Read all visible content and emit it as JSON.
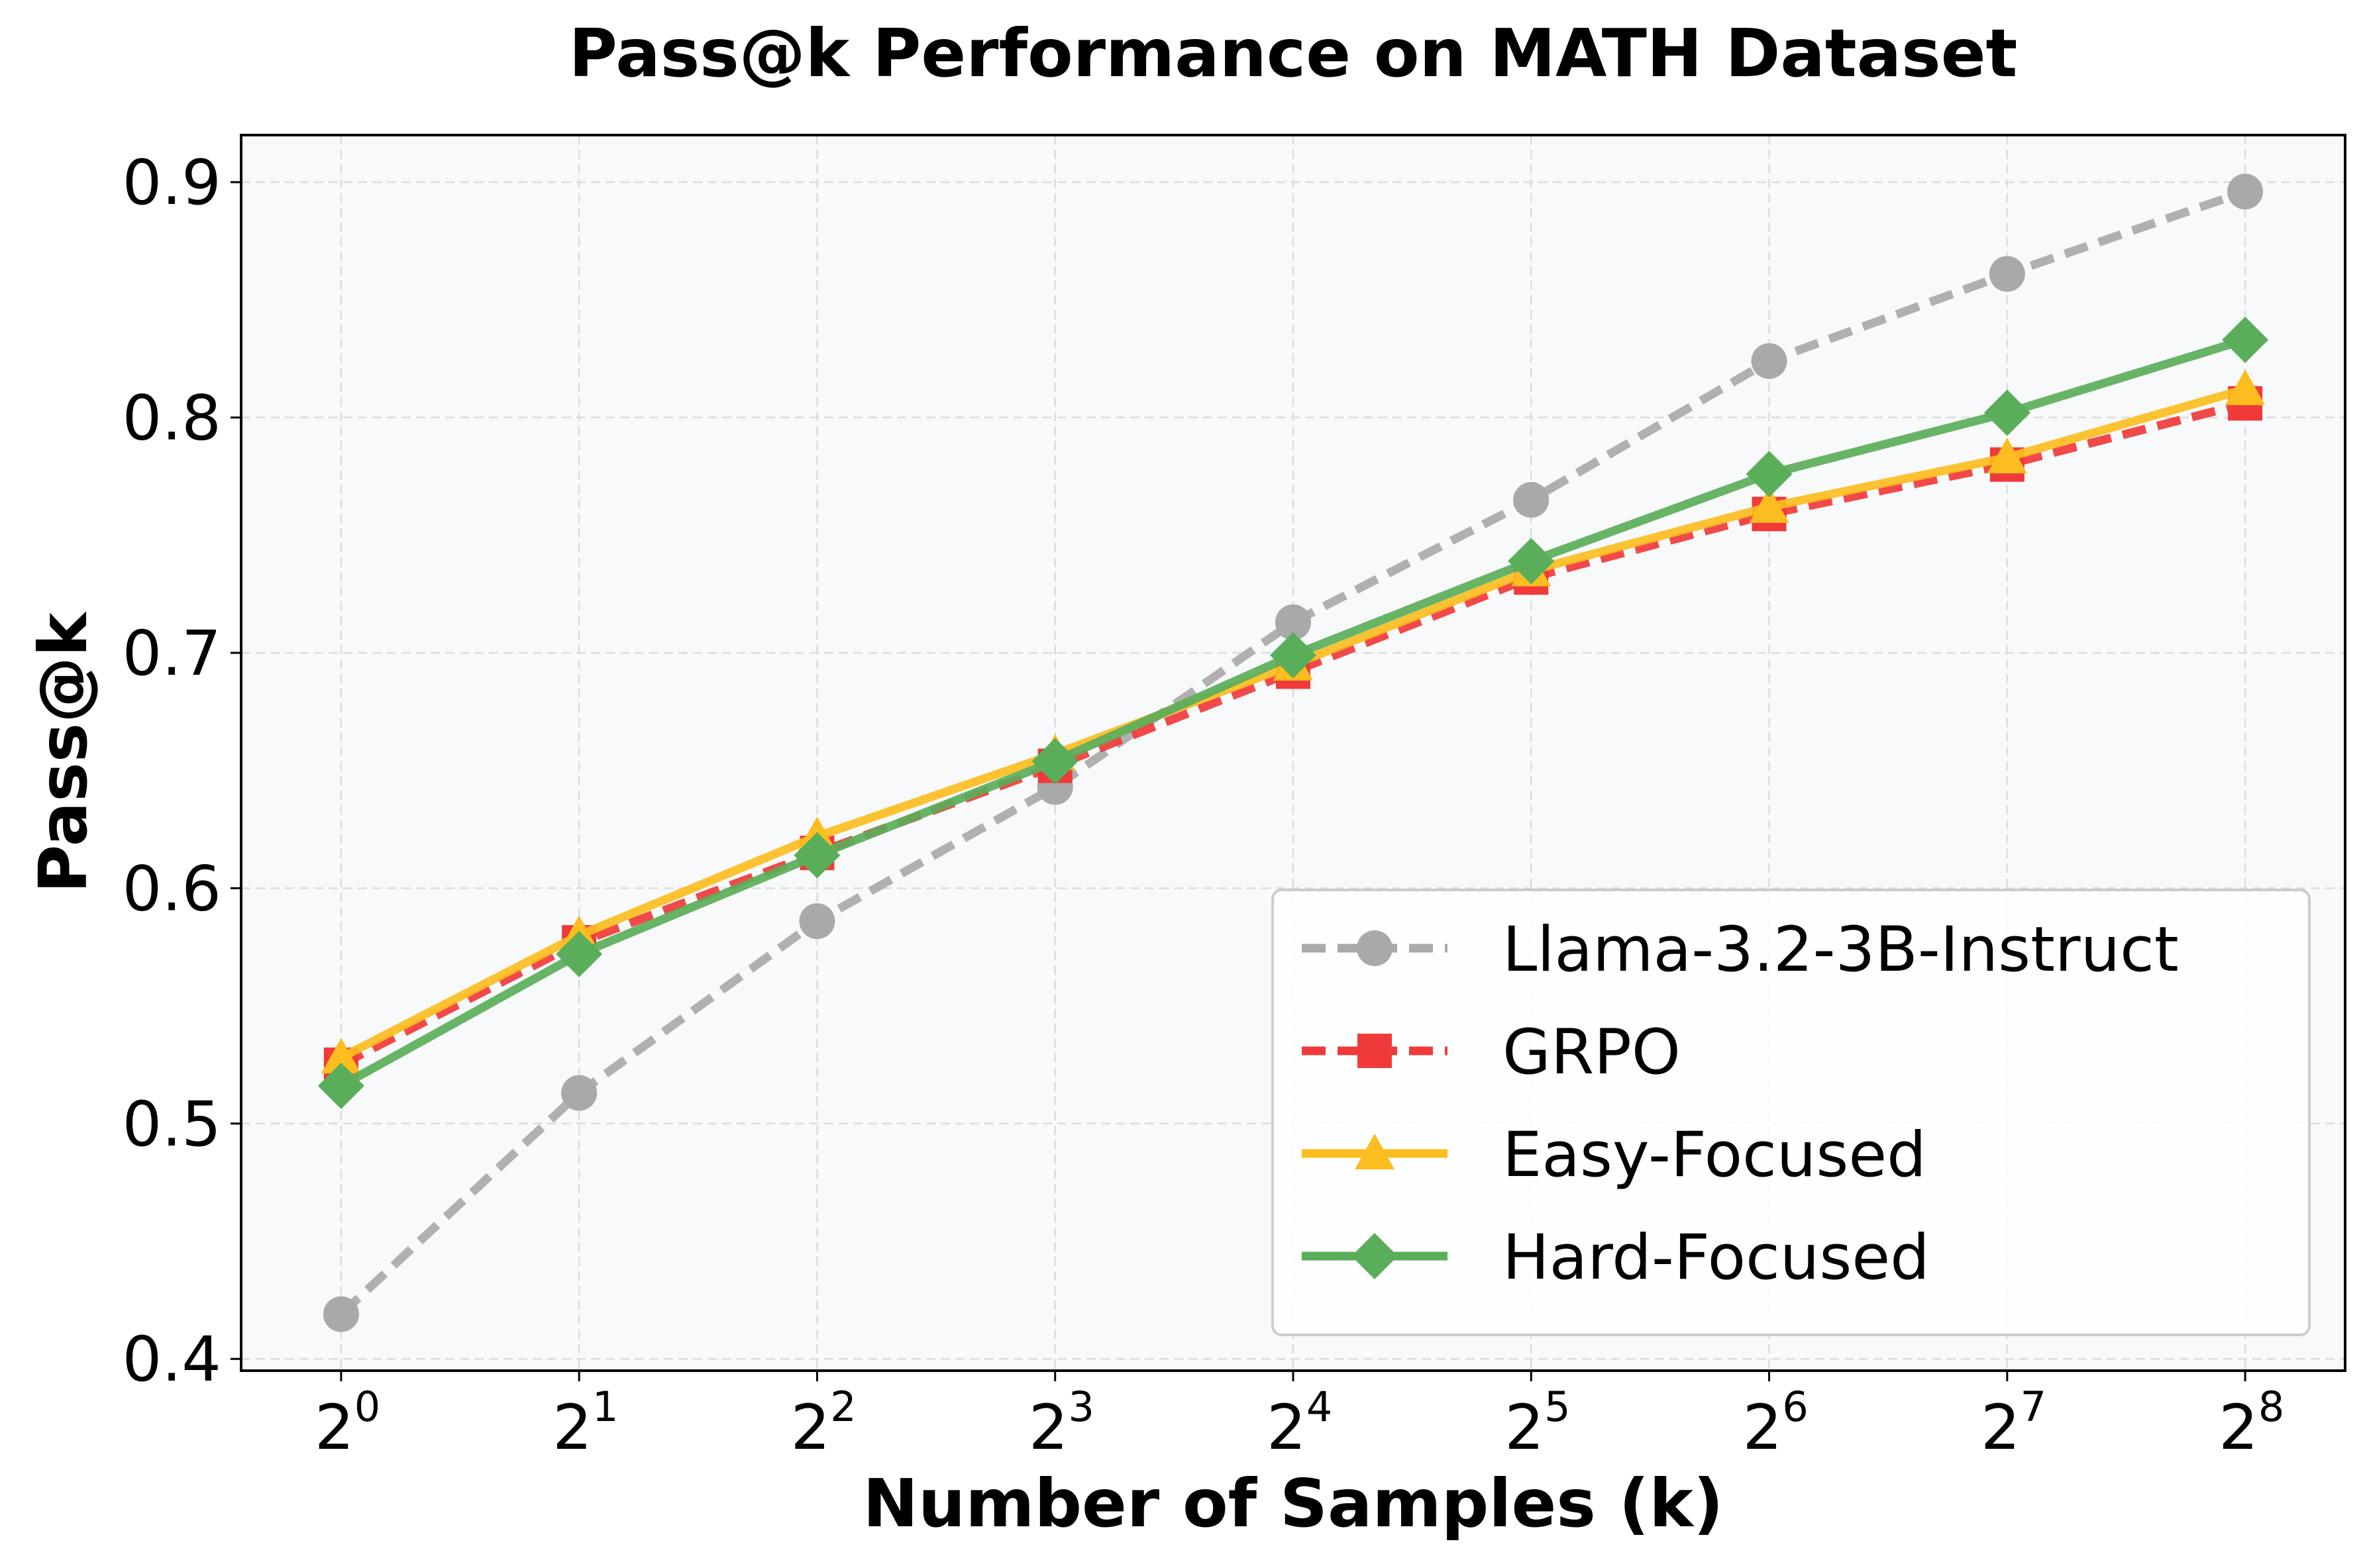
{
  "chart_data": {
    "type": "line",
    "title": "Pass@k Performance on MATH Dataset",
    "xlabel": "Number of Samples (k)",
    "ylabel": "Pass@k",
    "x_ticks": [
      {
        "base": "2",
        "exp": "0"
      },
      {
        "base": "2",
        "exp": "1"
      },
      {
        "base": "2",
        "exp": "2"
      },
      {
        "base": "2",
        "exp": "3"
      },
      {
        "base": "2",
        "exp": "4"
      },
      {
        "base": "2",
        "exp": "5"
      },
      {
        "base": "2",
        "exp": "6"
      },
      {
        "base": "2",
        "exp": "7"
      },
      {
        "base": "2",
        "exp": "8"
      }
    ],
    "x": [
      1,
      2,
      4,
      8,
      16,
      32,
      64,
      128,
      256
    ],
    "x_log2": [
      0,
      1,
      2,
      3,
      4,
      5,
      6,
      7,
      8
    ],
    "y_ticks": [
      "0.4",
      "0.5",
      "0.6",
      "0.7",
      "0.8",
      "0.9"
    ],
    "y_tick_values": [
      0.4,
      0.5,
      0.6,
      0.7,
      0.8,
      0.9
    ],
    "xlim_log2": [
      -0.42,
      8.42
    ],
    "ylim": [
      0.395,
      0.92
    ],
    "grid": true,
    "legend_position": "lower-right",
    "series": [
      {
        "name": "Llama-3.2-3B-Instruct",
        "color": "#a9a9a9",
        "line": "dashed",
        "marker": "circle",
        "values": [
          0.419,
          0.513,
          0.586,
          0.643,
          0.713,
          0.765,
          0.824,
          0.861,
          0.896
        ]
      },
      {
        "name": "GRPO",
        "color": "#f03a3a",
        "line": "dashed",
        "marker": "square",
        "values": [
          0.525,
          0.577,
          0.615,
          0.652,
          0.692,
          0.732,
          0.759,
          0.78,
          0.806
        ]
      },
      {
        "name": "Easy-Focused",
        "color": "#fbbd1f",
        "line": "solid",
        "marker": "triangle",
        "values": [
          0.528,
          0.58,
          0.622,
          0.657,
          0.695,
          0.735,
          0.762,
          0.783,
          0.812
        ]
      },
      {
        "name": "Hard-Focused",
        "color": "#5aae5a",
        "line": "solid",
        "marker": "diamond",
        "values": [
          0.516,
          0.572,
          0.614,
          0.654,
          0.699,
          0.739,
          0.776,
          0.802,
          0.833
        ]
      }
    ],
    "colors": {
      "plot_background": "#f8f9fa",
      "grid": "#dcdcdc",
      "frame": "#000000",
      "legend_border": "#cccccc"
    }
  }
}
